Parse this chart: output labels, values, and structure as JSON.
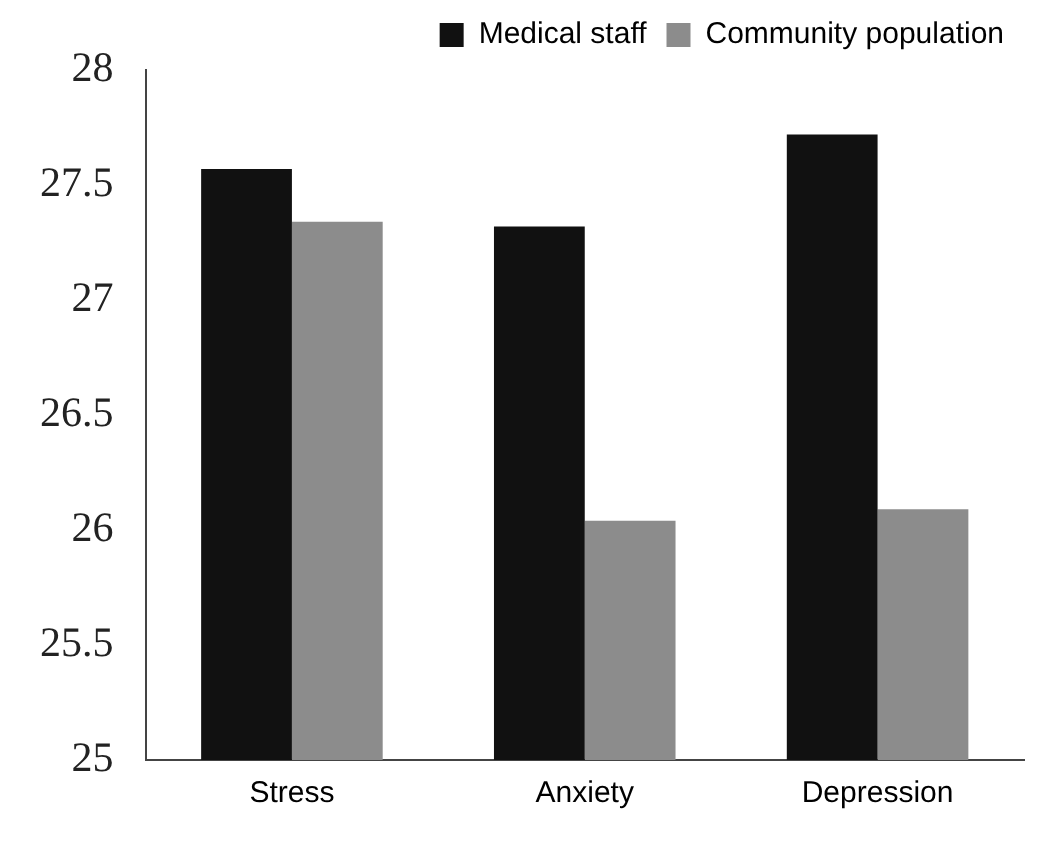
{
  "chart_data": {
    "type": "bar",
    "categories": [
      "Stress",
      "Anxiety",
      "Depression"
    ],
    "series": [
      {
        "name": "Medical staff",
        "color": "#111111",
        "values": [
          27.57,
          27.32,
          27.72
        ]
      },
      {
        "name": "Community population",
        "color": "#8c8c8c",
        "values": [
          27.34,
          26.04,
          26.09
        ]
      }
    ],
    "ylim": [
      25,
      28
    ],
    "yticks": [
      25,
      25.5,
      26,
      26.5,
      27,
      27.5,
      28
    ],
    "grid": false,
    "legend": "top right"
  }
}
